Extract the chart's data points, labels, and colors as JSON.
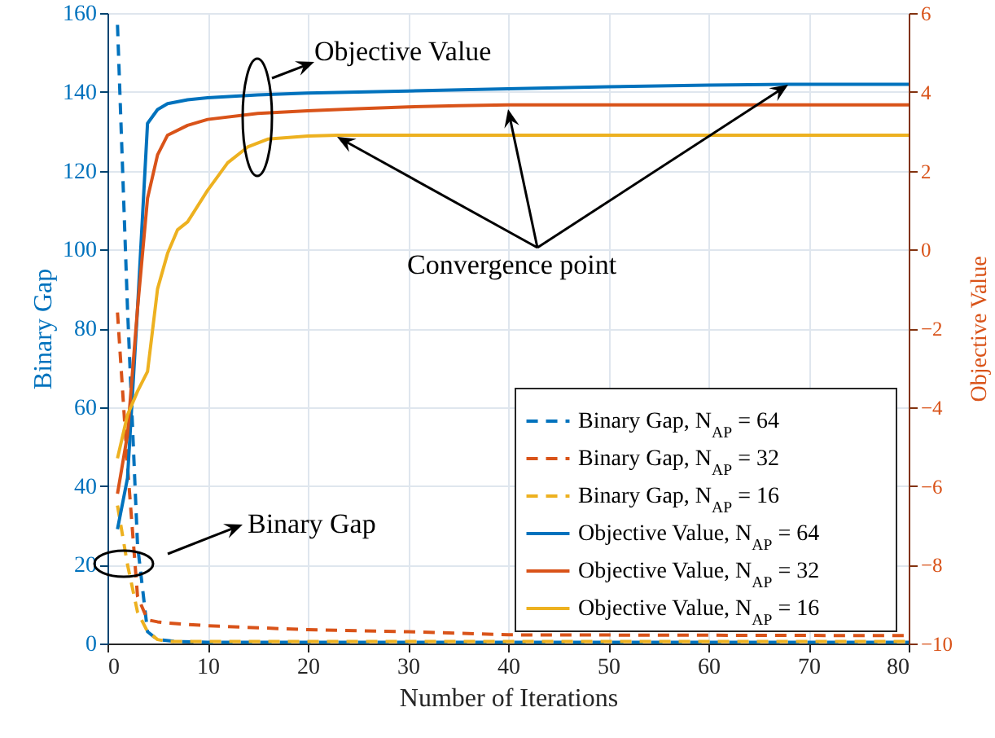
{
  "chart_data": {
    "type": "line",
    "xlabel": "Number of Iterations",
    "ylabel": "Binary Gap",
    "y2label": "Objective Value",
    "xlim": [
      0,
      80
    ],
    "xticks": [
      0,
      10,
      20,
      30,
      40,
      50,
      60,
      70,
      80
    ],
    "ylim": [
      0,
      160
    ],
    "yticks": [
      0,
      20,
      40,
      60,
      80,
      100,
      120,
      140,
      160
    ],
    "y2lim": [
      -10,
      6
    ],
    "y2ticks": [
      -10,
      -8,
      -6,
      -4,
      -2,
      0,
      2,
      4,
      6
    ],
    "grid": true,
    "legend": "bottom right",
    "annotations": [
      "Objective Value",
      "Binary Gap",
      {
        "text": "Convergence point",
        "x": 40,
        "y": 136
      }
    ],
    "series": [
      {
        "name": "Binary Gap, N$_{AP}$ = 64",
        "color": "#0072bd",
        "line_style": "dashed",
        "x": [
          1,
          2,
          3,
          4,
          5,
          7,
          10,
          80
        ],
        "values": [
          157,
          85,
          25,
          3,
          1,
          0.5,
          0.3,
          0.3
        ]
      },
      {
        "name": "Binary Gap, N$_{AP}$ = 32",
        "color": "#d95319",
        "line_style": "dashed",
        "x": [
          1,
          2,
          3,
          4,
          5,
          6,
          10,
          20,
          30,
          40,
          80
        ],
        "values": [
          84,
          45,
          12,
          6,
          5.5,
          5.2,
          4.5,
          3.5,
          3,
          2.2,
          2
        ]
      },
      {
        "name": "Binary Gap, N$_{AP}$ = 16",
        "color": "#edb120",
        "line_style": "dashed",
        "x": [
          1,
          2,
          3,
          4,
          5,
          6,
          80
        ],
        "values": [
          35,
          20,
          8,
          3,
          1,
          0.5,
          0.5
        ]
      },
      {
        "name": "Objective Value, N$_{AP}$ = 64",
        "color": "#0072bd",
        "line_style": "solid",
        "axis": "y2",
        "x": [
          1,
          2,
          3,
          4,
          5,
          6,
          8,
          10,
          15,
          20,
          30,
          40,
          50,
          60,
          68,
          80
        ],
        "values": [
          -7.1,
          -5.8,
          -1.5,
          3.2,
          3.55,
          3.7,
          3.8,
          3.85,
          3.92,
          3.97,
          4.02,
          4.08,
          4.13,
          4.17,
          4.19,
          4.19
        ]
      },
      {
        "name": "Objective Value, N$_{AP}$ = 32",
        "color": "#d95319",
        "line_style": "solid",
        "axis": "y2",
        "x": [
          1,
          2,
          3,
          4,
          5,
          6,
          8,
          10,
          15,
          20,
          25,
          30,
          35,
          40,
          80
        ],
        "values": [
          -6.2,
          -4.7,
          -1.5,
          1.3,
          2.4,
          2.9,
          3.15,
          3.3,
          3.45,
          3.52,
          3.57,
          3.62,
          3.65,
          3.67,
          3.67
        ]
      },
      {
        "name": "Objective Value, N$_{AP}$ = 16",
        "color": "#edb120",
        "line_style": "solid",
        "axis": "y2",
        "x": [
          1,
          2,
          3,
          4,
          5,
          6,
          7,
          8,
          10,
          12,
          14,
          16,
          20,
          23,
          80
        ],
        "values": [
          -5.3,
          -4.2,
          -3.6,
          -3.1,
          -1.0,
          -0.1,
          0.5,
          0.7,
          1.5,
          2.2,
          2.6,
          2.8,
          2.88,
          2.9,
          2.9
        ]
      }
    ]
  }
}
